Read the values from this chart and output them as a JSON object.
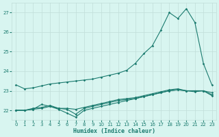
{
  "xlabel": "Humidex (Indice chaleur)",
  "x_values": [
    0,
    1,
    2,
    3,
    4,
    5,
    6,
    7,
    8,
    9,
    10,
    11,
    12,
    13,
    14,
    15,
    16,
    17,
    18,
    19,
    20,
    21,
    22,
    23
  ],
  "line1": [
    23.3,
    23.1,
    23.15,
    23.25,
    23.35,
    23.4,
    23.45,
    23.5,
    23.55,
    23.6,
    23.7,
    23.8,
    23.9,
    24.05,
    24.4,
    24.9,
    25.3,
    26.1,
    27.0,
    26.7,
    27.2,
    26.5,
    24.4,
    23.3
  ],
  "line2": [
    22.0,
    22.0,
    22.05,
    22.3,
    22.2,
    22.1,
    22.05,
    21.8,
    22.1,
    22.2,
    22.3,
    22.4,
    22.5,
    22.55,
    22.6,
    22.7,
    22.8,
    22.9,
    23.0,
    23.05,
    23.0,
    22.95,
    23.0,
    22.9
  ],
  "line3": [
    22.0,
    22.0,
    22.05,
    22.1,
    22.2,
    22.05,
    21.85,
    21.65,
    22.0,
    22.1,
    22.2,
    22.3,
    22.4,
    22.5,
    22.6,
    22.7,
    22.8,
    22.9,
    23.0,
    23.05,
    23.0,
    23.0,
    23.0,
    22.75
  ],
  "line4": [
    22.0,
    22.0,
    22.1,
    22.15,
    22.25,
    22.1,
    22.1,
    22.05,
    22.15,
    22.25,
    22.35,
    22.45,
    22.55,
    22.6,
    22.65,
    22.75,
    22.85,
    22.95,
    23.05,
    23.1,
    23.0,
    23.0,
    23.0,
    22.8
  ],
  "line_color": "#1a7a6e",
  "bg_color": "#d8f5f0",
  "grid_color": "#c0ddd8",
  "ylim": [
    21.5,
    27.5
  ],
  "yticks": [
    22,
    23,
    24,
    25,
    26,
    27
  ],
  "xticks": [
    0,
    1,
    2,
    3,
    4,
    5,
    6,
    7,
    8,
    9,
    10,
    11,
    12,
    13,
    14,
    15,
    16,
    17,
    18,
    19,
    20,
    21,
    22,
    23
  ],
  "marker": "D",
  "marker_size": 1.8,
  "line_width": 0.8
}
